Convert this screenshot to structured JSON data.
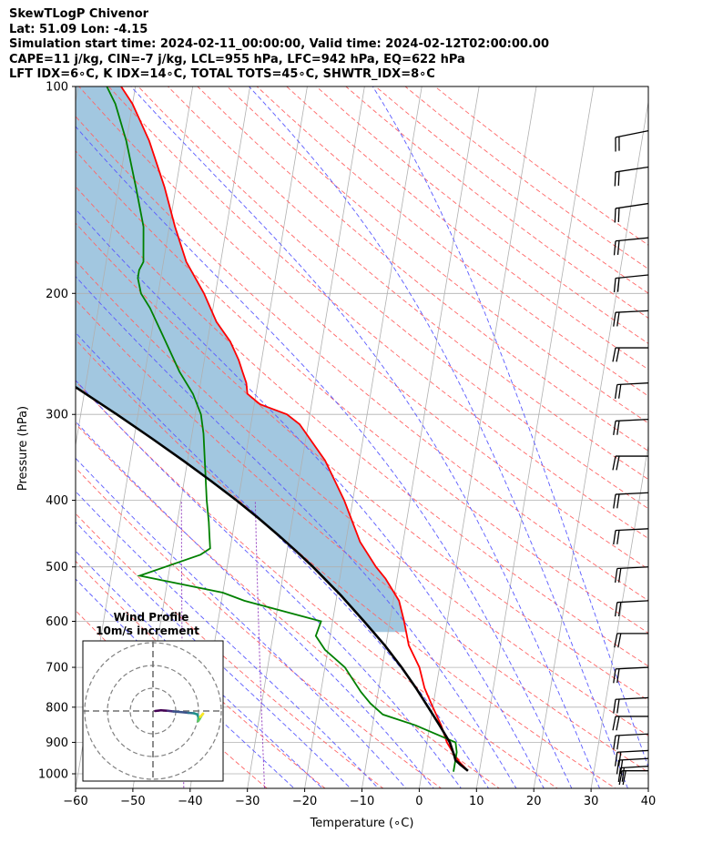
{
  "header": {
    "line1": "SkewTLogP Chivenor",
    "line2": "Lat: 51.09   Lon: -4.15",
    "line3": "Simulation start time: 2024-02-11_00:00:00, Valid time: 2024-02-12T02:00:00.00",
    "line4": "CAPE=11 j/kg, CIN=-7 j/kg, LCL=955 hPa, LFC=942 hPa, EQ=622 hPa",
    "line5": "LFT IDX=6∘C, K IDX=14∘C, TOTAL TOTS=45∘C, SHWTR_IDX=8∘C"
  },
  "chart_data": {
    "type": "line",
    "subtype": "skewt-logp",
    "xlabel": "Temperature (∘C)",
    "ylabel": "Pressure (hPa)",
    "xlim": [
      -60,
      40
    ],
    "ylim": [
      1050,
      100
    ],
    "y_scale": "log",
    "grid": true,
    "xticks": [
      -60,
      -50,
      -40,
      -30,
      -20,
      -10,
      0,
      10,
      20,
      30,
      40
    ],
    "xtick_labels": [
      "−60",
      "−50",
      "−40",
      "−30",
      "−20",
      "−10",
      "0",
      "10",
      "20",
      "30",
      "40"
    ],
    "yticks": [
      1000,
      900,
      800,
      700,
      600,
      500,
      400,
      300,
      200,
      100
    ],
    "ytick_labels": [
      "1000",
      "900",
      "800",
      "700",
      "600",
      "500",
      "400",
      "300",
      "200",
      "100"
    ],
    "colors": {
      "temperature": "#ff0000",
      "dewpoint": "#008000",
      "parcel": "#000000",
      "cape_fill": "#a2c7e0",
      "dry_adiabat": "#ff6666",
      "moist_adiabat": "#5a5aff",
      "mixing_ratio": "#9540c0",
      "isotherm": "#b0b0b0"
    },
    "series": [
      {
        "key": "temperature",
        "points": [
          [
            8.0,
            990
          ],
          [
            6.2,
            960
          ],
          [
            4.8,
            930
          ],
          [
            3.5,
            900
          ],
          [
            2.0,
            850
          ],
          [
            0.0,
            800
          ],
          [
            -2.0,
            750
          ],
          [
            -3.5,
            700
          ],
          [
            -6.0,
            650
          ],
          [
            -7.5,
            600
          ],
          [
            -9.0,
            560
          ],
          [
            -12.0,
            520
          ],
          [
            -14.0,
            500
          ],
          [
            -17.5,
            460
          ],
          [
            -21.5,
            400
          ],
          [
            -26.0,
            350
          ],
          [
            -31.5,
            310
          ],
          [
            -34.0,
            300
          ],
          [
            -39.0,
            290
          ],
          [
            -41.5,
            280
          ],
          [
            -42.0,
            270
          ],
          [
            -43.0,
            260
          ],
          [
            -44.0,
            250
          ],
          [
            -46.0,
            235
          ],
          [
            -49.0,
            220
          ],
          [
            -52.0,
            200
          ],
          [
            -56.0,
            180
          ],
          [
            -59.0,
            160
          ],
          [
            -62.0,
            140
          ],
          [
            -66.0,
            120
          ],
          [
            -70.0,
            106
          ],
          [
            -72.5,
            100
          ]
        ]
      },
      {
        "key": "dewpoint",
        "points": [
          [
            5.5,
            993
          ],
          [
            5.5,
            960
          ],
          [
            5.5,
            930
          ],
          [
            5.0,
            900
          ],
          [
            -2.5,
            850
          ],
          [
            -8.5,
            820
          ],
          [
            -11.0,
            790
          ],
          [
            -13.0,
            760
          ],
          [
            -16.5,
            700
          ],
          [
            -20.5,
            660
          ],
          [
            -22.5,
            630
          ],
          [
            -22.0,
            600
          ],
          [
            -36.0,
            560
          ],
          [
            -40.0,
            545
          ],
          [
            -55.0,
            515
          ],
          [
            -45.0,
            480
          ],
          [
            -43.5,
            470
          ],
          [
            -44.0,
            450
          ],
          [
            -44.5,
            430
          ],
          [
            -45.5,
            400
          ],
          [
            -47.0,
            350
          ],
          [
            -48.0,
            320
          ],
          [
            -49.0,
            300
          ],
          [
            -51.0,
            280
          ],
          [
            -54.0,
            260
          ],
          [
            -58.0,
            230
          ],
          [
            -61.0,
            210
          ],
          [
            -63.0,
            200
          ],
          [
            -64.0,
            190
          ],
          [
            -64.0,
            185
          ],
          [
            -63.5,
            180
          ],
          [
            -64.5,
            160
          ],
          [
            -67.0,
            140
          ],
          [
            -70.0,
            120
          ],
          [
            -73.0,
            106
          ],
          [
            -75.0,
            100
          ]
        ]
      },
      {
        "key": "parcel",
        "points": [
          [
            8.0,
            990
          ],
          [
            6.5,
            970
          ],
          [
            5.5,
            955
          ],
          [
            5.2,
            942
          ],
          [
            4.0,
            900
          ],
          [
            1.7,
            850
          ],
          [
            -0.8,
            800
          ],
          [
            -3.5,
            750
          ],
          [
            -6.6,
            700
          ],
          [
            -10.2,
            650
          ],
          [
            -14.5,
            600
          ],
          [
            -19.3,
            550
          ],
          [
            -25.0,
            500
          ],
          [
            -28.3,
            475
          ],
          [
            -31.9,
            450
          ],
          [
            -35.9,
            425
          ],
          [
            -40.3,
            400
          ],
          [
            -45.3,
            375
          ],
          [
            -50.8,
            350
          ],
          [
            -56.9,
            325
          ],
          [
            -63.7,
            300
          ],
          [
            -71.3,
            275
          ],
          [
            -79.7,
            250
          ],
          [
            -89.1,
            225
          ],
          [
            -99.5,
            200
          ],
          [
            -111.0,
            175
          ],
          [
            -123.6,
            150
          ],
          [
            -137.3,
            125
          ],
          [
            -152.0,
            100
          ]
        ]
      }
    ],
    "cape_region": {
      "from_hPa": 622,
      "to_hPa": 100
    },
    "wind_barbs": [
      {
        "p": 990,
        "u": -16,
        "v": 0
      },
      {
        "p": 975,
        "u": -17,
        "v": -1
      },
      {
        "p": 950,
        "u": -18,
        "v": -1
      },
      {
        "p": 925,
        "u": -19,
        "v": -1
      },
      {
        "p": 875,
        "u": -20,
        "v": -1
      },
      {
        "p": 825,
        "u": -20,
        "v": 0
      },
      {
        "p": 775,
        "u": -20,
        "v": -1
      },
      {
        "p": 700,
        "u": -20,
        "v": -1
      },
      {
        "p": 625,
        "u": -19,
        "v": 0
      },
      {
        "p": 560,
        "u": -19,
        "v": -1
      },
      {
        "p": 500,
        "u": -19,
        "v": -1
      },
      {
        "p": 440,
        "u": -20,
        "v": -1
      },
      {
        "p": 390,
        "u": -20,
        "v": -1
      },
      {
        "p": 345,
        "u": -20,
        "v": 0
      },
      {
        "p": 305,
        "u": -20,
        "v": -1
      },
      {
        "p": 270,
        "u": -19,
        "v": -1
      },
      {
        "p": 240,
        "u": -20,
        "v": 0
      },
      {
        "p": 212,
        "u": -20,
        "v": -1
      },
      {
        "p": 188,
        "u": -20,
        "v": -2
      },
      {
        "p": 166,
        "u": -20,
        "v": -2
      },
      {
        "p": 148,
        "u": -20,
        "v": -3
      },
      {
        "p": 131,
        "u": -20,
        "v": -3
      },
      {
        "p": 116,
        "u": -20,
        "v": -4
      }
    ],
    "hodograph": {
      "title_line1": "Wind Profile",
      "title_line2": "10m/s increment",
      "ring_increment_ms": 10,
      "rings": 3,
      "points": [
        [
          1.0,
          0.0
        ],
        [
          3.5,
          0.3
        ],
        [
          6.5,
          0.1
        ],
        [
          9.0,
          -0.2
        ],
        [
          12.5,
          -0.5
        ],
        [
          15.5,
          -0.8
        ],
        [
          18.0,
          -1.0
        ],
        [
          19.5,
          -1.5
        ],
        [
          20.0,
          -3.0
        ],
        [
          19.8,
          -4.5
        ],
        [
          20.5,
          -3.5
        ],
        [
          21.5,
          -1.8
        ],
        [
          22.0,
          -1.2
        ],
        [
          20.7,
          -2.6
        ]
      ]
    }
  }
}
